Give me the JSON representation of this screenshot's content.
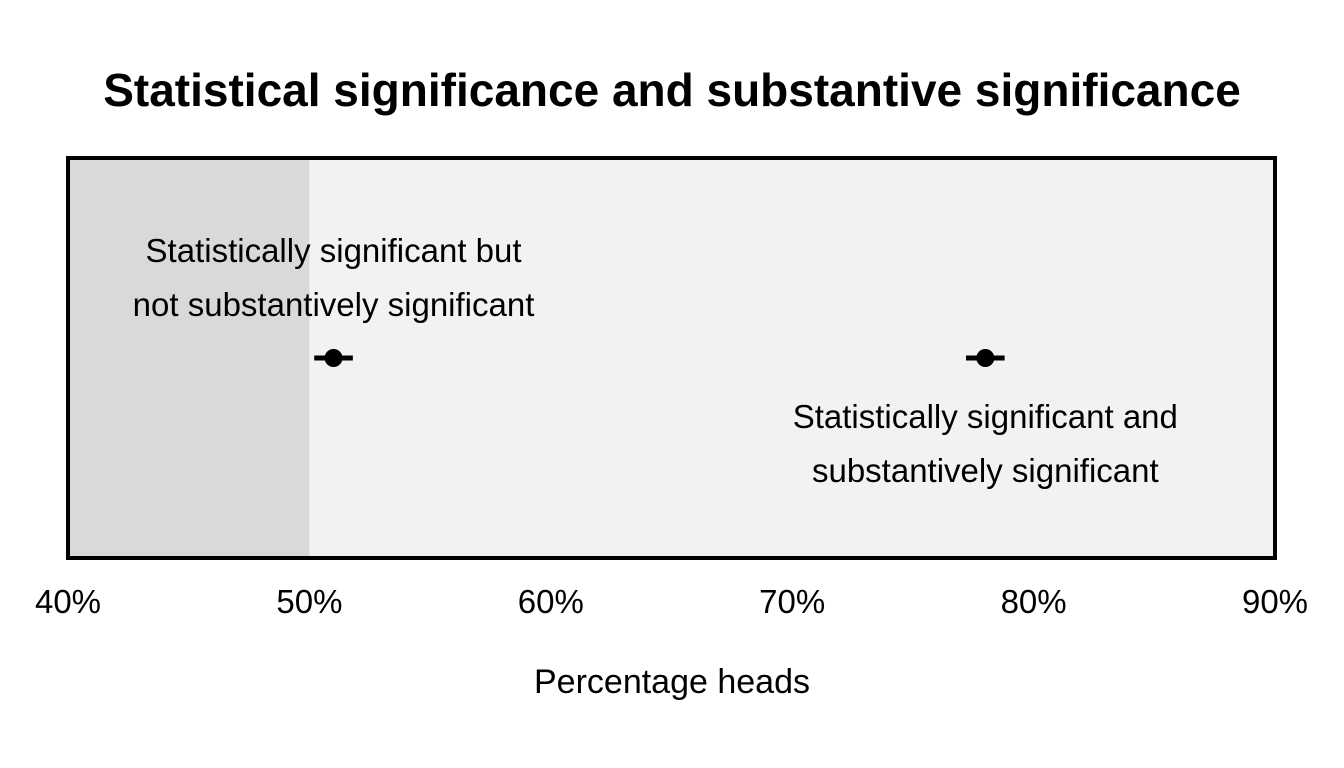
{
  "chart_data": {
    "type": "scatter",
    "title": "Statistical significance and substantive significance",
    "xlabel": "Percentage heads",
    "ylabel": "",
    "xlim": [
      40,
      90
    ],
    "ticks": [
      {
        "value": 40,
        "label": "40%"
      },
      {
        "value": 50,
        "label": "50%"
      },
      {
        "value": 60,
        "label": "60%"
      },
      {
        "value": 70,
        "label": "70%"
      },
      {
        "value": 80,
        "label": "80%"
      },
      {
        "value": 90,
        "label": "90%"
      }
    ],
    "shaded_region": {
      "x": [
        40,
        50
      ],
      "color": "#d9d9d9"
    },
    "panel_background": "#f2f2f2",
    "points": [
      {
        "x": 51,
        "ci": [
          50.2,
          51.8
        ],
        "label": [
          "Statistically significant but",
          "not substantively significant"
        ],
        "label_position": "above"
      },
      {
        "x": 78,
        "ci": [
          77.2,
          78.8
        ],
        "label": [
          "Statistically significant and",
          "substantively significant"
        ],
        "label_position": "below"
      }
    ],
    "grid": false,
    "legend": "none"
  }
}
